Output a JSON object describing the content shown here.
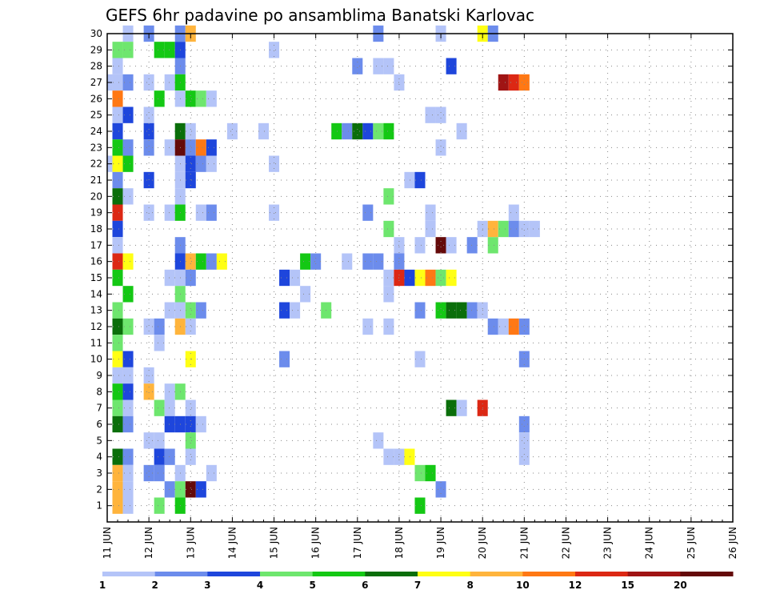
{
  "chart_data": {
    "type": "heatmap",
    "title": "GEFS 6hr padavine po ansamblima Banatski Karlovac",
    "xlabel": "",
    "ylabel": "",
    "x_tick_labels": [
      "11 JUN",
      "12 JUN",
      "13 JUN",
      "14 JUN",
      "15 JUN",
      "16 JUN",
      "17 JUN",
      "18 JUN",
      "19 JUN",
      "20 JUN",
      "21 JUN",
      "22 JUN",
      "23 JUN",
      "24 JUN",
      "25 JUN",
      "26 JUN"
    ],
    "y_tick_labels": [
      "1",
      "2",
      "3",
      "4",
      "5",
      "6",
      "7",
      "8",
      "9",
      "10",
      "11",
      "12",
      "13",
      "14",
      "15",
      "16",
      "17",
      "18",
      "19",
      "20",
      "21",
      "22",
      "23",
      "24",
      "25",
      "26",
      "27",
      "28",
      "29",
      "30"
    ],
    "x_range_days": [
      0,
      15
    ],
    "y_range": [
      0,
      30
    ],
    "time_step_hours": 6,
    "grid": true,
    "legend": "bottom colorbar",
    "colorbar": {
      "labels": [
        "1",
        "2",
        "3",
        "4",
        "5",
        "6",
        "7",
        "8",
        "10",
        "12",
        "15",
        "20"
      ],
      "colors": [
        "#b4c4f8",
        "#6c8cec",
        "#1e46dc",
        "#6ee66e",
        "#14c814",
        "#0a6e0a",
        "#ffff14",
        "#ffb43c",
        "#ff7814",
        "#dc2814",
        "#a01414",
        "#640a0a"
      ]
    },
    "cells_note": "values: [member, time step index from 11 JUN 00Z, precip class index 1-12]",
    "cells": [
      [
        30,
        1,
        1
      ],
      [
        30,
        3,
        2
      ],
      [
        30,
        6,
        2
      ],
      [
        30,
        7,
        8
      ],
      [
        30,
        25,
        2
      ],
      [
        30,
        31,
        1
      ],
      [
        30,
        35,
        7
      ],
      [
        30,
        36,
        2
      ],
      [
        29,
        0,
        4
      ],
      [
        29,
        1,
        4
      ],
      [
        29,
        4,
        5
      ],
      [
        29,
        5,
        5
      ],
      [
        29,
        6,
        3
      ],
      [
        29,
        15,
        1
      ],
      [
        28,
        0,
        1
      ],
      [
        28,
        6,
        2
      ],
      [
        28,
        23,
        2
      ],
      [
        28,
        25,
        1
      ],
      [
        28,
        26,
        1
      ],
      [
        28,
        32,
        3
      ],
      [
        27,
        -1,
        1
      ],
      [
        27,
        0,
        1
      ],
      [
        27,
        1,
        2
      ],
      [
        27,
        3,
        1
      ],
      [
        27,
        5,
        1
      ],
      [
        27,
        6,
        5
      ],
      [
        27,
        27,
        1
      ],
      [
        27,
        37,
        11
      ],
      [
        27,
        38,
        10
      ],
      [
        27,
        39,
        9
      ],
      [
        26,
        0,
        9
      ],
      [
        26,
        4,
        5
      ],
      [
        26,
        6,
        1
      ],
      [
        26,
        7,
        5
      ],
      [
        26,
        8,
        4
      ],
      [
        26,
        9,
        1
      ],
      [
        25,
        0,
        1
      ],
      [
        25,
        1,
        3
      ],
      [
        25,
        3,
        1
      ],
      [
        25,
        30,
        1
      ],
      [
        25,
        31,
        1
      ],
      [
        24,
        0,
        3
      ],
      [
        24,
        3,
        3
      ],
      [
        24,
        6,
        6
      ],
      [
        24,
        7,
        1
      ],
      [
        24,
        11,
        1
      ],
      [
        24,
        14,
        1
      ],
      [
        24,
        21,
        5
      ],
      [
        24,
        22,
        2
      ],
      [
        24,
        23,
        6
      ],
      [
        24,
        24,
        3
      ],
      [
        24,
        25,
        4
      ],
      [
        24,
        26,
        5
      ],
      [
        24,
        33,
        1
      ],
      [
        23,
        0,
        5
      ],
      [
        23,
        1,
        2
      ],
      [
        23,
        3,
        2
      ],
      [
        23,
        5,
        1
      ],
      [
        23,
        6,
        12
      ],
      [
        23,
        7,
        2
      ],
      [
        23,
        8,
        9
      ],
      [
        23,
        9,
        3
      ],
      [
        23,
        31,
        1
      ],
      [
        22,
        -1,
        1
      ],
      [
        22,
        0,
        7
      ],
      [
        22,
        1,
        5
      ],
      [
        22,
        6,
        1
      ],
      [
        22,
        7,
        3
      ],
      [
        22,
        8,
        2
      ],
      [
        22,
        9,
        1
      ],
      [
        22,
        15,
        1
      ],
      [
        21,
        0,
        2
      ],
      [
        21,
        3,
        3
      ],
      [
        21,
        6,
        1
      ],
      [
        21,
        7,
        3
      ],
      [
        21,
        28,
        1
      ],
      [
        21,
        29,
        3
      ],
      [
        20,
        0,
        6
      ],
      [
        20,
        1,
        1
      ],
      [
        20,
        6,
        1
      ],
      [
        20,
        26,
        4
      ],
      [
        19,
        0,
        10
      ],
      [
        19,
        3,
        1
      ],
      [
        19,
        5,
        1
      ],
      [
        19,
        6,
        5
      ],
      [
        19,
        8,
        1
      ],
      [
        19,
        9,
        2
      ],
      [
        19,
        15,
        1
      ],
      [
        19,
        24,
        2
      ],
      [
        19,
        30,
        1
      ],
      [
        19,
        38,
        1
      ],
      [
        18,
        0,
        3
      ],
      [
        18,
        26,
        4
      ],
      [
        18,
        30,
        1
      ],
      [
        18,
        35,
        1
      ],
      [
        18,
        36,
        8
      ],
      [
        18,
        37,
        4
      ],
      [
        18,
        38,
        2
      ],
      [
        18,
        39,
        1
      ],
      [
        18,
        40,
        1
      ],
      [
        17,
        0,
        1
      ],
      [
        17,
        6,
        2
      ],
      [
        17,
        27,
        1
      ],
      [
        17,
        29,
        1
      ],
      [
        17,
        31,
        12
      ],
      [
        17,
        32,
        1
      ],
      [
        17,
        34,
        2
      ],
      [
        17,
        36,
        4
      ],
      [
        16,
        0,
        10
      ],
      [
        16,
        1,
        7
      ],
      [
        16,
        6,
        3
      ],
      [
        16,
        7,
        8
      ],
      [
        16,
        8,
        5
      ],
      [
        16,
        9,
        2
      ],
      [
        16,
        10,
        7
      ],
      [
        16,
        18,
        5
      ],
      [
        16,
        19,
        2
      ],
      [
        16,
        22,
        1
      ],
      [
        16,
        24,
        2
      ],
      [
        16,
        25,
        2
      ],
      [
        16,
        27,
        2
      ],
      [
        15,
        0,
        5
      ],
      [
        15,
        5,
        1
      ],
      [
        15,
        6,
        1
      ],
      [
        15,
        7,
        2
      ],
      [
        15,
        16,
        3
      ],
      [
        15,
        17,
        1
      ],
      [
        15,
        26,
        1
      ],
      [
        15,
        27,
        10
      ],
      [
        15,
        28,
        3
      ],
      [
        15,
        29,
        7
      ],
      [
        15,
        30,
        9
      ],
      [
        15,
        31,
        4
      ],
      [
        15,
        32,
        7
      ],
      [
        14,
        1,
        5
      ],
      [
        14,
        6,
        4
      ],
      [
        14,
        18,
        1
      ],
      [
        14,
        26,
        1
      ],
      [
        13,
        0,
        4
      ],
      [
        13,
        5,
        1
      ],
      [
        13,
        6,
        1
      ],
      [
        13,
        7,
        4
      ],
      [
        13,
        8,
        2
      ],
      [
        13,
        16,
        3
      ],
      [
        13,
        17,
        1
      ],
      [
        13,
        20,
        4
      ],
      [
        13,
        29,
        2
      ],
      [
        13,
        31,
        5
      ],
      [
        13,
        32,
        6
      ],
      [
        13,
        33,
        6
      ],
      [
        13,
        34,
        2
      ],
      [
        13,
        35,
        1
      ],
      [
        12,
        0,
        6
      ],
      [
        12,
        1,
        4
      ],
      [
        12,
        3,
        1
      ],
      [
        12,
        4,
        2
      ],
      [
        12,
        6,
        8
      ],
      [
        12,
        7,
        1
      ],
      [
        12,
        24,
        1
      ],
      [
        12,
        26,
        1
      ],
      [
        12,
        36,
        2
      ],
      [
        12,
        37,
        1
      ],
      [
        12,
        38,
        9
      ],
      [
        12,
        39,
        2
      ],
      [
        11,
        0,
        4
      ],
      [
        11,
        4,
        1
      ],
      [
        10,
        0,
        7
      ],
      [
        10,
        1,
        3
      ],
      [
        10,
        7,
        7
      ],
      [
        10,
        16,
        2
      ],
      [
        10,
        29,
        1
      ],
      [
        10,
        39,
        2
      ],
      [
        9,
        0,
        1
      ],
      [
        9,
        1,
        1
      ],
      [
        9,
        3,
        1
      ],
      [
        8,
        0,
        5
      ],
      [
        8,
        1,
        3
      ],
      [
        8,
        3,
        8
      ],
      [
        8,
        5,
        1
      ],
      [
        8,
        6,
        4
      ],
      [
        7,
        0,
        4
      ],
      [
        7,
        1,
        1
      ],
      [
        7,
        4,
        4
      ],
      [
        7,
        5,
        1
      ],
      [
        7,
        7,
        1
      ],
      [
        7,
        32,
        6
      ],
      [
        7,
        33,
        1
      ],
      [
        7,
        35,
        10
      ],
      [
        6,
        0,
        6
      ],
      [
        6,
        1,
        2
      ],
      [
        6,
        5,
        3
      ],
      [
        6,
        6,
        3
      ],
      [
        6,
        7,
        3
      ],
      [
        6,
        8,
        1
      ],
      [
        6,
        39,
        2
      ],
      [
        5,
        3,
        1
      ],
      [
        5,
        4,
        1
      ],
      [
        5,
        7,
        4
      ],
      [
        5,
        25,
        1
      ],
      [
        5,
        39,
        1
      ],
      [
        4,
        0,
        6
      ],
      [
        4,
        1,
        2
      ],
      [
        4,
        4,
        3
      ],
      [
        4,
        5,
        2
      ],
      [
        4,
        7,
        1
      ],
      [
        4,
        26,
        1
      ],
      [
        4,
        27,
        1
      ],
      [
        4,
        28,
        7
      ],
      [
        4,
        39,
        1
      ],
      [
        3,
        0,
        8
      ],
      [
        3,
        1,
        1
      ],
      [
        3,
        3,
        2
      ],
      [
        3,
        4,
        2
      ],
      [
        3,
        6,
        1
      ],
      [
        3,
        9,
        1
      ],
      [
        3,
        29,
        4
      ],
      [
        3,
        30,
        5
      ],
      [
        2,
        0,
        8
      ],
      [
        2,
        1,
        1
      ],
      [
        2,
        5,
        2
      ],
      [
        2,
        6,
        4
      ],
      [
        2,
        7,
        12
      ],
      [
        2,
        8,
        3
      ],
      [
        2,
        31,
        2
      ],
      [
        1,
        0,
        8
      ],
      [
        1,
        1,
        1
      ],
      [
        1,
        4,
        4
      ],
      [
        1,
        6,
        5
      ],
      [
        1,
        29,
        5
      ]
    ]
  }
}
